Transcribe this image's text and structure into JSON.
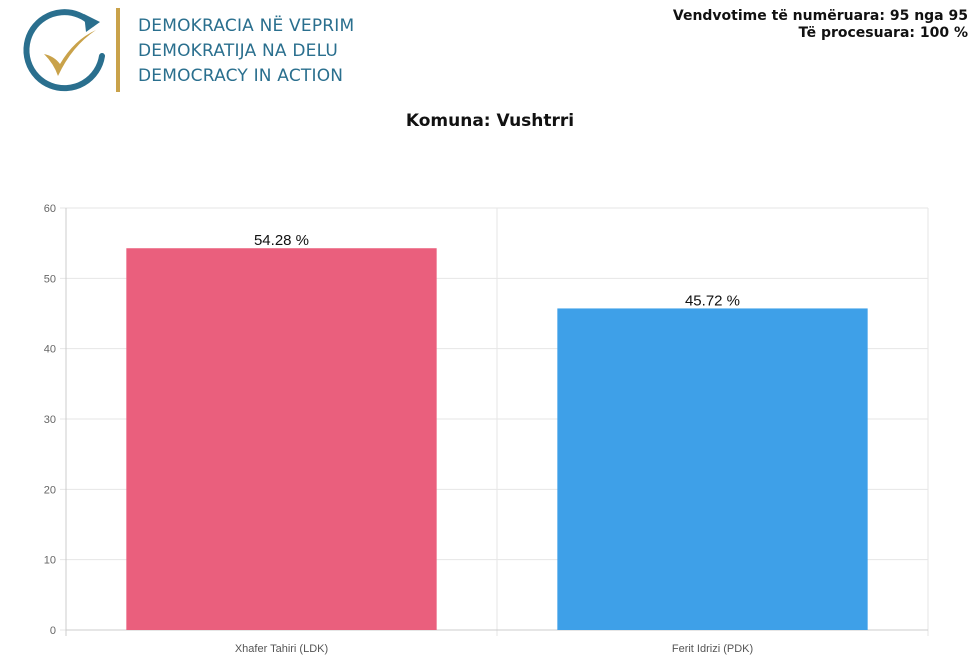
{
  "header": {
    "org_lines": [
      "DEMOKRACIA NË VEPRIM",
      "DEMOKRATIJA NA DELU",
      "DEMOCRACY IN ACTION"
    ],
    "status_line1": "Vendvotime të numëruara: 95 nga 95",
    "status_line2": "Të procesuara: 100 %"
  },
  "colors": {
    "logo_teal": "#2a6f8e",
    "logo_gold": "#c9a24a",
    "bar_ldk": "#ea5f7d",
    "bar_pdk": "#3ea0e8"
  },
  "chart_data": {
    "type": "bar",
    "title": "Komuna: Vushtrri",
    "categories": [
      "Xhafer Tahiri (LDK)",
      "Ferit Idrizi (PDK)"
    ],
    "values": [
      54.28,
      45.72
    ],
    "data_labels": [
      "54.28 %",
      "45.72 %"
    ],
    "ylim": [
      0,
      60
    ],
    "yticks": [
      0,
      10,
      20,
      30,
      40,
      50,
      60
    ],
    "xlabel": "",
    "ylabel": "",
    "grid": true
  }
}
